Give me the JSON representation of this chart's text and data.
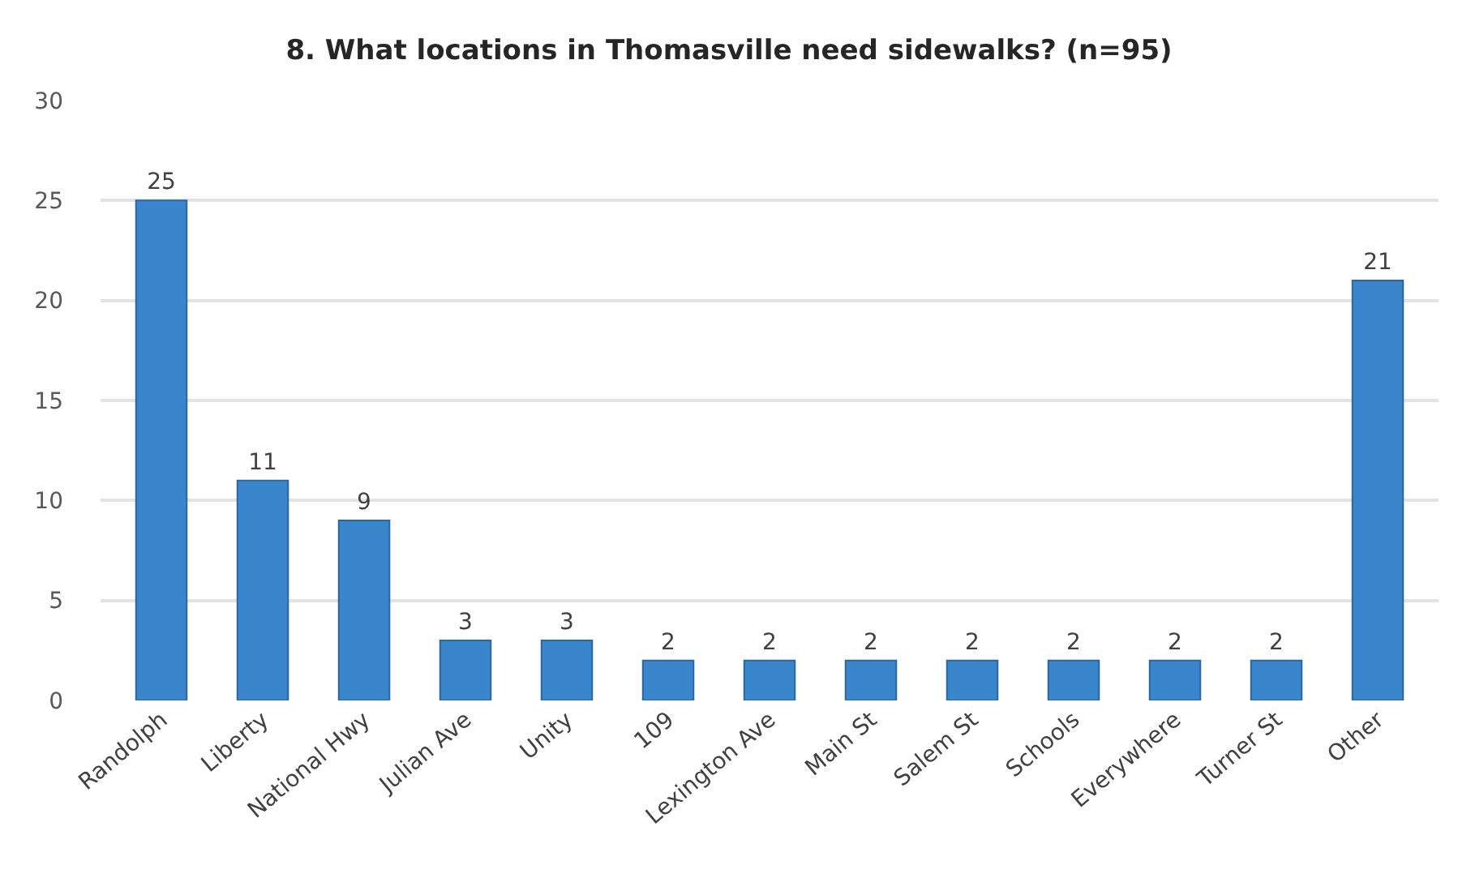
{
  "chart_data": {
    "type": "bar",
    "title": "8. What locations in Thomasville need sidewalks? (n=95)",
    "categories": [
      "Randolph",
      "Liberty",
      "National Hwy",
      "Julian Ave",
      "Unity",
      "109",
      "Lexington Ave",
      "Main St",
      "Salem St",
      "Schools",
      "Everywhere",
      "Turner St",
      "Other"
    ],
    "values": [
      25,
      11,
      9,
      3,
      3,
      2,
      2,
      2,
      2,
      2,
      2,
      2,
      21
    ],
    "color": "#3a86cc",
    "ylim": [
      0,
      30
    ],
    "yticks": [
      0,
      5,
      10,
      15,
      20,
      25,
      30
    ],
    "grid": "y",
    "data_labels": true
  }
}
